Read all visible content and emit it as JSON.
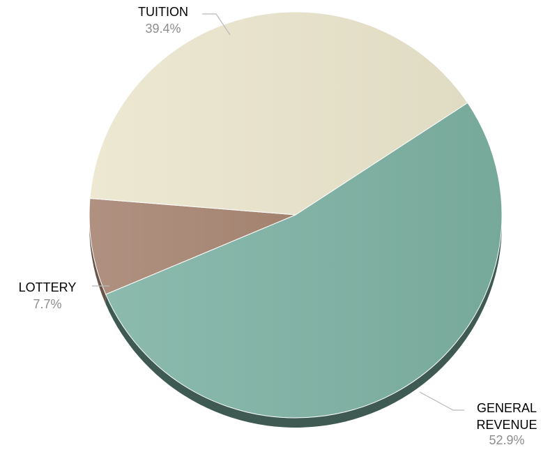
{
  "chart_data": {
    "type": "pie",
    "title": "",
    "slices": [
      {
        "name": "GENERAL REVENUE",
        "label_lines": [
          "GENERAL",
          "REVENUE"
        ],
        "percent_label": "52.9%",
        "value": 52.9,
        "color": "#7fb0a3",
        "edge_color": "#3e5a52"
      },
      {
        "name": "LOTTERY",
        "label_lines": [
          "LOTTERY"
        ],
        "percent_label": "7.7%",
        "value": 7.7,
        "color": "#a98a78",
        "edge_color": "#6a5448"
      },
      {
        "name": "TUITION",
        "label_lines": [
          "TUITION"
        ],
        "percent_label": "39.4%",
        "value": 39.4,
        "color": "#e6e1ca",
        "edge_color": "#b8b49f"
      }
    ]
  }
}
